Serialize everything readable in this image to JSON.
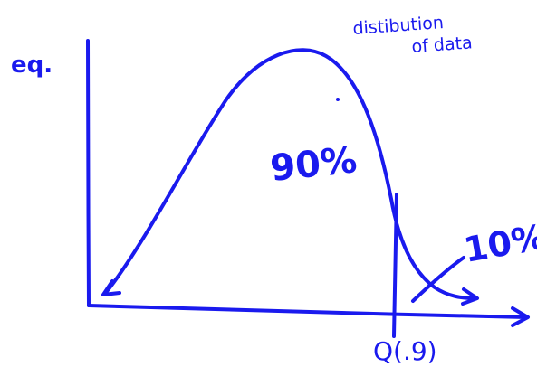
{
  "labels": {
    "example": "eq.",
    "curve_line1": "distibution",
    "curve_line2": "of data",
    "left_area": "90%",
    "right_area": "10%",
    "quantile": "Q(.9)"
  }
}
